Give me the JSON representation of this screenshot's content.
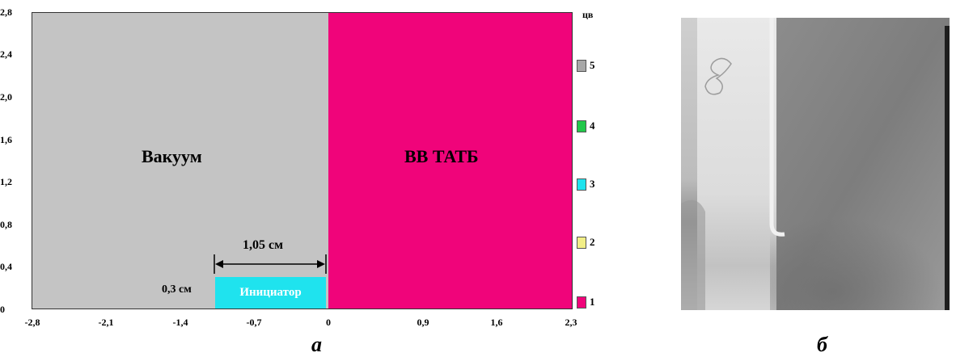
{
  "figure_a": {
    "y_ticks": [
      "2,8",
      "2,4",
      "2,0",
      "1,6",
      "1,2",
      "0,8",
      "0,4",
      "0"
    ],
    "x_ticks": [
      "-2,8",
      "-2,1",
      "-1,4",
      "-0,7",
      "0",
      "0,9",
      "1,6",
      "2,3"
    ],
    "regions": {
      "vacuum_label": "Вакуум",
      "explosive_label": "ВВ ТАТБ",
      "initiator_label": "Инициатор"
    },
    "dimension_width_label": "1,05 см",
    "dimension_height_label": "0,3 см",
    "legend": {
      "title": "цв",
      "items": [
        {
          "label": "5",
          "color": "#a8a8a8"
        },
        {
          "label": "4",
          "color": "#22c84a"
        },
        {
          "label": "3",
          "color": "#1fe3ee"
        },
        {
          "label": "2",
          "color": "#f2ee86"
        },
        {
          "label": "1",
          "color": "#f0047a"
        }
      ]
    },
    "colors": {
      "vacuum": "#c4c4c4",
      "explosive": "#f0047a",
      "initiator": "#1fe3ee"
    },
    "caption": "а"
  },
  "figure_b": {
    "caption": "б"
  }
}
